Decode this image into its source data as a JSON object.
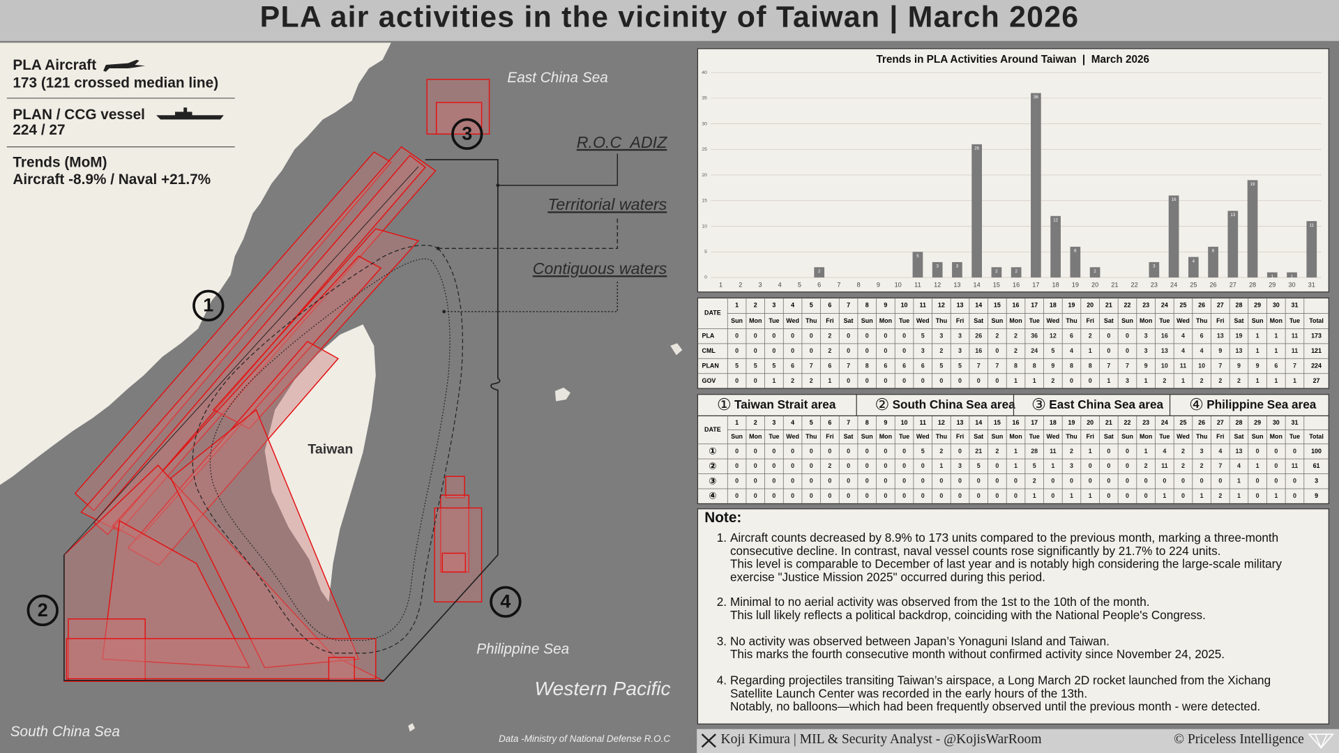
{
  "header": {
    "title": "PLA air activities in the vicinity of Taiwan | March 2026"
  },
  "info": {
    "aircraft_title": "PLA Aircraft",
    "aircraft_value": "173 (121 crossed median line)",
    "vessel_title": "PLAN / CCG vessel",
    "vessel_value": "224 / 27",
    "trend_title": "Trends (MoM)",
    "trend_value": "Aircraft -8.9% / Naval +21.7%"
  },
  "map": {
    "east_china_sea": "East China Sea",
    "adiz": "R.O.C  ADIZ",
    "territorial": "Territorial waters",
    "contiguous": "Contiguous waters",
    "taiwan": "Taiwan",
    "philippine_sea": "Philippine Sea",
    "western_pacific": "Western Pacific",
    "south_china_sea": "South China Sea",
    "source": "Data -Ministry of National Defense R.O.C",
    "markers": [
      "1",
      "2",
      "3",
      "4"
    ]
  },
  "chart_data": {
    "type": "bar",
    "title": "Trends in PLA Activities Around Taiwan  |  March 2026",
    "categories": [
      "1",
      "2",
      "3",
      "4",
      "5",
      "6",
      "7",
      "8",
      "9",
      "10",
      "11",
      "12",
      "13",
      "14",
      "15",
      "16",
      "17",
      "18",
      "19",
      "20",
      "21",
      "22",
      "23",
      "24",
      "25",
      "26",
      "27",
      "28",
      "29",
      "30",
      "31"
    ],
    "values": [
      0,
      0,
      0,
      0,
      0,
      2,
      0,
      0,
      0,
      0,
      5,
      3,
      3,
      26,
      2,
      2,
      36,
      12,
      6,
      2,
      0,
      0,
      3,
      16,
      4,
      6,
      13,
      19,
      1,
      1,
      11
    ],
    "color": "#7a7a7a",
    "ylim": [
      0,
      40
    ],
    "yticks": [
      0,
      5,
      10,
      15,
      20,
      25,
      30,
      35,
      40
    ],
    "grid": true
  },
  "tables": [
    {
      "corner": "DATE",
      "days": [
        1,
        2,
        3,
        4,
        5,
        6,
        7,
        8,
        9,
        10,
        11,
        12,
        13,
        14,
        15,
        16,
        17,
        18,
        19,
        20,
        21,
        22,
        23,
        24,
        25,
        26,
        27,
        28,
        29,
        30,
        31
      ],
      "weekdays": [
        "Sun",
        "Mon",
        "Tue",
        "Wed",
        "Thu",
        "Fri",
        "Sat",
        "Sun",
        "Mon",
        "Tue",
        "Wed",
        "Thu",
        "Fri",
        "Sat",
        "Sun",
        "Mon",
        "Tue",
        "Wed",
        "Thu",
        "Fri",
        "Sat",
        "Sun",
        "Mon",
        "Tue",
        "Wed",
        "Thu",
        "Fri",
        "Sat",
        "Sun",
        "Mon",
        "Tue"
      ],
      "total_header": "Total",
      "rows": [
        {
          "label": "PLA",
          "values": [
            0,
            0,
            0,
            0,
            0,
            2,
            0,
            0,
            0,
            0,
            5,
            3,
            3,
            26,
            2,
            2,
            36,
            12,
            6,
            2,
            0,
            0,
            3,
            16,
            4,
            6,
            13,
            19,
            1,
            1,
            11
          ],
          "total": 173
        },
        {
          "label": "CML",
          "values": [
            0,
            0,
            0,
            0,
            0,
            2,
            0,
            0,
            0,
            0,
            3,
            2,
            3,
            16,
            0,
            2,
            24,
            5,
            4,
            1,
            0,
            0,
            3,
            13,
            4,
            4,
            9,
            13,
            1,
            1,
            11
          ],
          "total": 121
        },
        {
          "label": "PLAN",
          "values": [
            5,
            5,
            5,
            6,
            7,
            6,
            7,
            8,
            6,
            6,
            6,
            5,
            5,
            7,
            7,
            8,
            8,
            9,
            8,
            8,
            7,
            7,
            9,
            10,
            11,
            10,
            7,
            9,
            9,
            6,
            7
          ],
          "total": 224
        },
        {
          "label": "GOV",
          "values": [
            0,
            0,
            1,
            2,
            2,
            1,
            0,
            0,
            0,
            0,
            0,
            0,
            0,
            0,
            0,
            1,
            1,
            2,
            0,
            0,
            1,
            3,
            1,
            2,
            1,
            2,
            2,
            2,
            1,
            1,
            1
          ],
          "total": 27
        }
      ]
    },
    {
      "areas": [
        {
          "marker": "①",
          "name": "Taiwan Strait area"
        },
        {
          "marker": "②",
          "name": "South China Sea area"
        },
        {
          "marker": "③",
          "name": "East China Sea area"
        },
        {
          "marker": "④",
          "name": "Philippine Sea area"
        }
      ],
      "corner": "DATE",
      "days": [
        1,
        2,
        3,
        4,
        5,
        6,
        7,
        8,
        9,
        10,
        11,
        12,
        13,
        14,
        15,
        16,
        17,
        18,
        19,
        20,
        21,
        22,
        23,
        24,
        25,
        26,
        27,
        28,
        29,
        30,
        31
      ],
      "weekdays": [
        "Sun",
        "Mon",
        "Tue",
        "Wed",
        "Thu",
        "Fri",
        "Sat",
        "Sun",
        "Mon",
        "Tue",
        "Wed",
        "Thu",
        "Fri",
        "Sat",
        "Sun",
        "Mon",
        "Tue",
        "Wed",
        "Thu",
        "Fri",
        "Sat",
        "Sun",
        "Mon",
        "Tue",
        "Wed",
        "Thu",
        "Fri",
        "Sat",
        "Sun",
        "Mon",
        "Tue"
      ],
      "total_header": "Total",
      "rows": [
        {
          "label": "①",
          "values": [
            0,
            0,
            0,
            0,
            0,
            0,
            0,
            0,
            0,
            0,
            5,
            2,
            0,
            21,
            2,
            1,
            28,
            11,
            2,
            1,
            0,
            0,
            1,
            4,
            2,
            3,
            4,
            13,
            0,
            0,
            0
          ],
          "total": 100
        },
        {
          "label": "②",
          "values": [
            0,
            0,
            0,
            0,
            0,
            2,
            0,
            0,
            0,
            0,
            0,
            1,
            3,
            5,
            0,
            1,
            5,
            1,
            3,
            0,
            0,
            0,
            2,
            11,
            2,
            2,
            7,
            4,
            1,
            0,
            11
          ],
          "total": 61
        },
        {
          "label": "③",
          "values": [
            0,
            0,
            0,
            0,
            0,
            0,
            0,
            0,
            0,
            0,
            0,
            0,
            0,
            0,
            0,
            0,
            2,
            0,
            0,
            0,
            0,
            0,
            0,
            0,
            0,
            0,
            0,
            1,
            0,
            0,
            0
          ],
          "total": 3
        },
        {
          "label": "④",
          "values": [
            0,
            0,
            0,
            0,
            0,
            0,
            0,
            0,
            0,
            0,
            0,
            0,
            0,
            0,
            0,
            0,
            1,
            0,
            1,
            1,
            0,
            0,
            0,
            1,
            0,
            1,
            2,
            1,
            0,
            1,
            0
          ],
          "total": 9
        }
      ]
    }
  ],
  "notes": {
    "title": "Note:",
    "items": [
      {
        "number": "1.",
        "lines": [
          "Aircraft counts decreased by 8.9% to 173 units compared to the previous month, marking a three-month",
          "consecutive decline. In contrast, naval vessel counts rose significantly by 21.7% to 224 units.",
          "This level is comparable to December of last year and is notably high considering the large-scale military",
          "exercise \"Justice Mission 2025\" occurred during this period."
        ]
      },
      {
        "number": "2.",
        "lines": [
          "Minimal to no aerial activity was observed from the 1st to the 10th of the month.",
          "This lull likely reflects a political backdrop, coinciding with the National People's Congress."
        ]
      },
      {
        "number": "3.",
        "lines": [
          "No activity was observed between Japan’s Yonaguni Island and Taiwan.",
          "This marks the fourth consecutive month without confirmed activity since November 24, 2025."
        ]
      },
      {
        "number": "4.",
        "lines": [
          "Regarding projectiles transiting Taiwan’s airspace, a Long March 2D rocket launched from the Xichang",
          "Satellite Launch Center was recorded in the early hours of the 13th.",
          "Notably, no balloons—which had been frequently observed until the previous month - were detected."
        ]
      }
    ]
  },
  "footer": {
    "author": "Koji Kimura | MIL & Security Analyst - @KojisWarRoom",
    "copyright": "© Priceless Intelligence"
  }
}
